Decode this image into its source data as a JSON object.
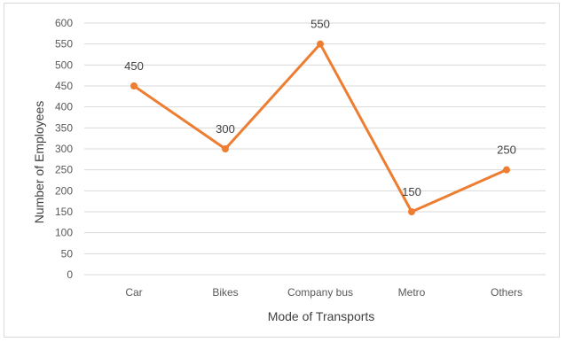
{
  "chart_data": {
    "type": "line",
    "title": "",
    "xlabel": "Mode of Transports",
    "ylabel": "Number of Employees",
    "categories": [
      "Car",
      "Bikes",
      "Company bus",
      "Metro",
      "Others"
    ],
    "series": [
      {
        "values": [
          450,
          300,
          550,
          150,
          250
        ]
      }
    ],
    "data_labels": [
      "450",
      "300",
      "550",
      "150",
      "250"
    ],
    "ylim": [
      0,
      600
    ],
    "y_ticks": [
      "0",
      "50",
      "100",
      "150",
      "200",
      "250",
      "300",
      "350",
      "400",
      "450",
      "500",
      "550",
      "600"
    ],
    "grid": true,
    "legend": "none",
    "line_color": "#ED7D31",
    "grid_color": "#d9d9d9"
  }
}
